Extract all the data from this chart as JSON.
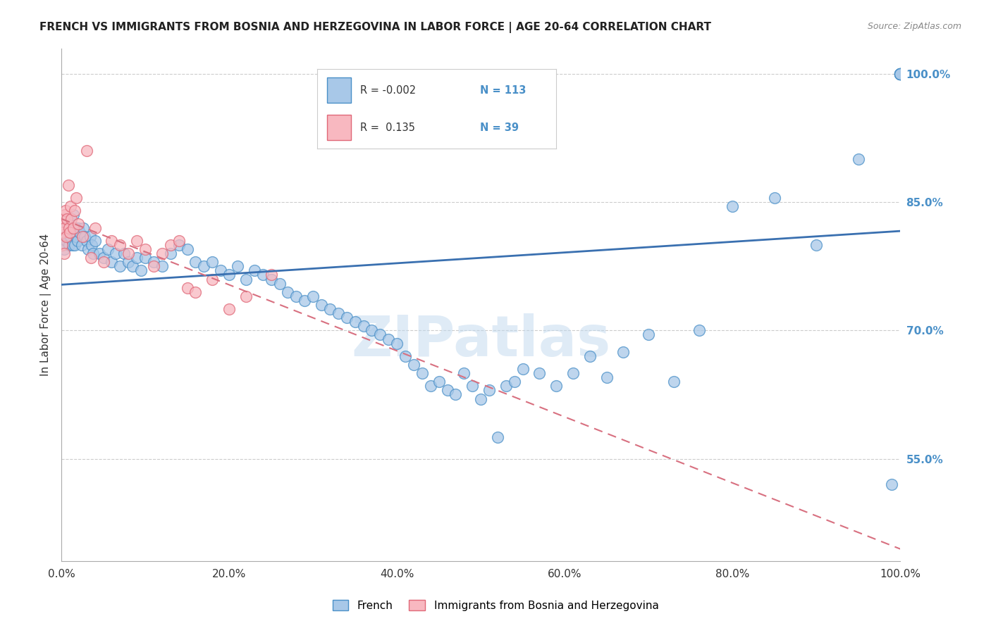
{
  "title": "FRENCH VS IMMIGRANTS FROM BOSNIA AND HERZEGOVINA IN LABOR FORCE | AGE 20-64 CORRELATION CHART",
  "source": "Source: ZipAtlas.com",
  "ylabel": "In Labor Force | Age 20-64",
  "right_yticks": [
    55.0,
    70.0,
    85.0,
    100.0
  ],
  "right_ytick_labels": [
    "55.0%",
    "70.0%",
    "85.0%",
    "100.0%"
  ],
  "legend_label1": "French",
  "legend_label2": "Immigrants from Bosnia and Herzegovina",
  "blue_face_color": "#A8C8E8",
  "blue_edge_color": "#4A90C8",
  "pink_face_color": "#F8B8C0",
  "pink_edge_color": "#E06878",
  "blue_line_color": "#3A70B0",
  "pink_line_color": "#D87080",
  "grid_color": "#CCCCCC",
  "right_tick_color": "#4A90C8",
  "watermark": "ZIPatlas",
  "watermark_color": "#C0D8EE",
  "xmin": 0.0,
  "xmax": 100.0,
  "ymin": 43.0,
  "ymax": 103.0,
  "blue_scatter_x": [
    0.1,
    0.2,
    0.3,
    0.4,
    0.5,
    0.6,
    0.7,
    0.8,
    0.9,
    1.0,
    1.1,
    1.2,
    1.3,
    1.4,
    1.5,
    1.6,
    1.7,
    1.8,
    1.9,
    2.0,
    2.2,
    2.4,
    2.6,
    2.8,
    3.0,
    3.2,
    3.4,
    3.6,
    3.8,
    4.0,
    4.5,
    5.0,
    5.5,
    6.0,
    6.5,
    7.0,
    7.5,
    8.0,
    8.5,
    9.0,
    9.5,
    10.0,
    11.0,
    12.0,
    13.0,
    14.0,
    15.0,
    16.0,
    17.0,
    18.0,
    19.0,
    20.0,
    21.0,
    22.0,
    23.0,
    24.0,
    25.0,
    26.0,
    27.0,
    28.0,
    29.0,
    30.0,
    31.0,
    32.0,
    33.0,
    34.0,
    35.0,
    36.0,
    37.0,
    38.0,
    39.0,
    40.0,
    41.0,
    42.0,
    43.0,
    44.0,
    45.0,
    46.0,
    47.0,
    48.0,
    49.0,
    50.0,
    51.0,
    52.0,
    53.0,
    54.0,
    55.0,
    57.0,
    59.0,
    61.0,
    63.0,
    65.0,
    67.0,
    70.0,
    73.0,
    76.0,
    80.0,
    85.0,
    90.0,
    95.0,
    99.0,
    100.0,
    100.0,
    100.0,
    100.0,
    100.0,
    100.0,
    100.0,
    100.0,
    100.0,
    100.0,
    100.0,
    100.0
  ],
  "blue_scatter_y": [
    80.0,
    82.0,
    79.5,
    81.0,
    83.0,
    80.5,
    82.5,
    81.5,
    80.0,
    83.0,
    81.0,
    82.0,
    80.0,
    83.5,
    81.5,
    80.0,
    82.0,
    81.0,
    80.5,
    82.0,
    81.5,
    80.0,
    82.0,
    81.0,
    80.5,
    79.5,
    81.0,
    80.0,
    79.0,
    80.5,
    79.0,
    78.5,
    79.5,
    78.0,
    79.0,
    77.5,
    79.0,
    78.0,
    77.5,
    78.5,
    77.0,
    78.5,
    78.0,
    77.5,
    79.0,
    80.0,
    79.5,
    78.0,
    77.5,
    78.0,
    77.0,
    76.5,
    77.5,
    76.0,
    77.0,
    76.5,
    76.0,
    75.5,
    74.5,
    74.0,
    73.5,
    74.0,
    73.0,
    72.5,
    72.0,
    71.5,
    71.0,
    70.5,
    70.0,
    69.5,
    69.0,
    68.5,
    67.0,
    66.0,
    65.0,
    63.5,
    64.0,
    63.0,
    62.5,
    65.0,
    63.5,
    62.0,
    63.0,
    57.5,
    63.5,
    64.0,
    65.5,
    65.0,
    63.5,
    65.0,
    67.0,
    64.5,
    67.5,
    69.5,
    64.0,
    70.0,
    84.5,
    85.5,
    80.0,
    90.0,
    52.0,
    100.0,
    100.0,
    100.0,
    100.0,
    100.0,
    100.0,
    100.0,
    100.0,
    100.0,
    100.0,
    100.0,
    100.0
  ],
  "pink_scatter_x": [
    0.1,
    0.15,
    0.2,
    0.25,
    0.3,
    0.35,
    0.4,
    0.5,
    0.6,
    0.7,
    0.8,
    0.9,
    1.0,
    1.1,
    1.2,
    1.4,
    1.6,
    1.8,
    2.0,
    2.5,
    3.0,
    3.5,
    4.0,
    5.0,
    6.0,
    7.0,
    8.0,
    9.0,
    10.0,
    11.0,
    12.0,
    13.0,
    14.0,
    15.0,
    16.0,
    18.0,
    20.0,
    22.0,
    25.0
  ],
  "pink_scatter_y": [
    80.0,
    82.5,
    81.5,
    83.0,
    79.0,
    82.0,
    83.5,
    84.0,
    81.0,
    83.0,
    87.0,
    82.0,
    81.5,
    84.5,
    83.0,
    82.0,
    84.0,
    85.5,
    82.5,
    81.0,
    91.0,
    78.5,
    82.0,
    78.0,
    80.5,
    80.0,
    79.0,
    80.5,
    79.5,
    77.5,
    79.0,
    80.0,
    80.5,
    75.0,
    74.5,
    76.0,
    72.5,
    74.0,
    76.5
  ]
}
